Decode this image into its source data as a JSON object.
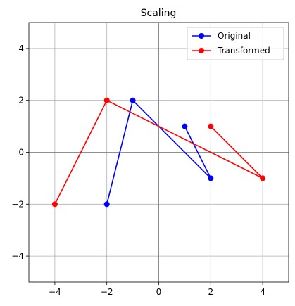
{
  "chart_data": {
    "type": "line",
    "title": "Scaling",
    "xlabel": "",
    "ylabel": "",
    "xlim": [
      -5,
      5
    ],
    "ylim": [
      -5,
      5
    ],
    "xticks": [
      -4,
      -2,
      0,
      2,
      4
    ],
    "yticks": [
      -4,
      -2,
      0,
      2,
      4
    ],
    "xtick_labels": [
      "−4",
      "−2",
      "0",
      "2",
      "4"
    ],
    "ytick_labels": [
      "−4",
      "−2",
      "0",
      "2",
      "4"
    ],
    "grid": true,
    "legend_position": "top-right",
    "axes_lines_at_zero": true,
    "series": [
      {
        "name": "Original",
        "color": "#0000ff",
        "marker": "circle",
        "x": [
          -2,
          -1,
          2,
          1
        ],
        "y": [
          -2,
          2,
          -1,
          1
        ]
      },
      {
        "name": "Transformed",
        "color": "#ff0000",
        "marker": "circle",
        "x": [
          -4,
          -2,
          4,
          2
        ],
        "y": [
          -2,
          2,
          -1,
          1
        ]
      }
    ]
  }
}
